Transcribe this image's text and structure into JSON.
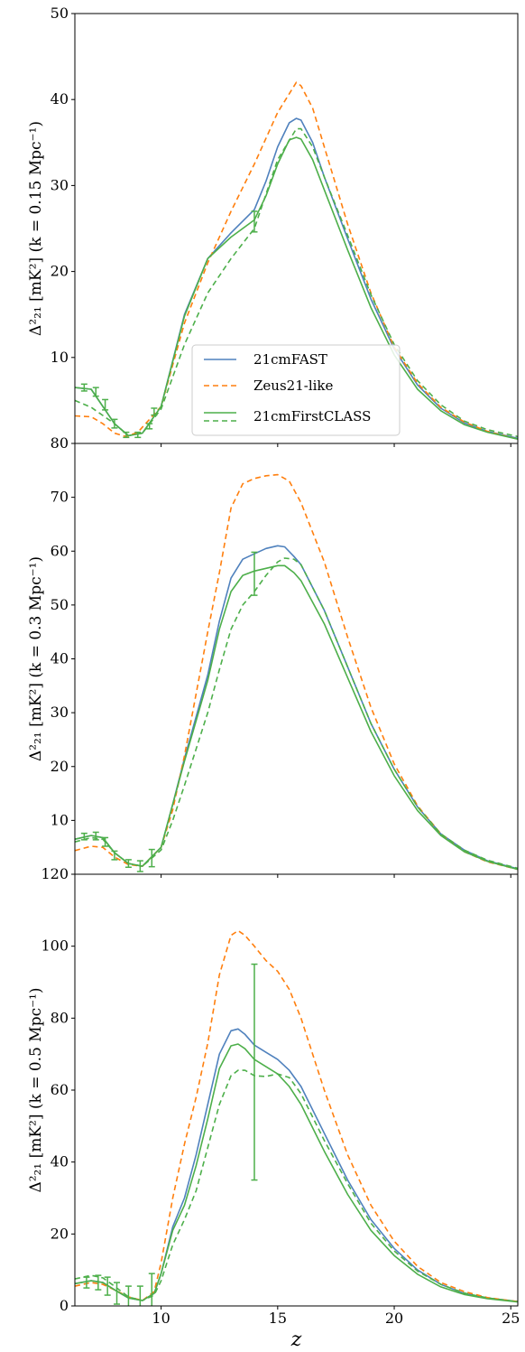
{
  "chart_data": {
    "type": "line",
    "shared_x": {
      "label": "z",
      "lim": [
        6.3,
        25.3
      ],
      "ticks": [
        10,
        15,
        20,
        25
      ],
      "tick_labels": [
        "10",
        "15",
        "20",
        "25"
      ]
    },
    "legend": {
      "placement": "lower-center (top panel)",
      "entries": [
        {
          "label": "21cmFAST",
          "color": "#4f81bd",
          "dash": "solid"
        },
        {
          "label": "Zeus21-like",
          "color": "#ff7f0e",
          "dash": "dashed"
        },
        {
          "label": "21cmFirstCLASS",
          "color": "#4daf4a",
          "dash": "solid+dashed"
        }
      ]
    },
    "panels": [
      {
        "ylabel": "Δ²₂₁ [mK²] (k = 0.15 Mpc⁻¹)",
        "ylim": [
          0,
          50
        ],
        "yticks": [
          10,
          20,
          30,
          40,
          50
        ],
        "ytick_labels": [
          "10",
          "20",
          "30",
          "40",
          "50"
        ],
        "series": [
          {
            "name": "21cmFAST",
            "color": "#4f81bd",
            "dash": "solid",
            "x": [
              6.3,
              7,
              8,
              8.6,
              9.2,
              10,
              11,
              12,
              13,
              14,
              14.5,
              15,
              15.5,
              15.8,
              16,
              16.5,
              17,
              18,
              19,
              20,
              21,
              22,
              23,
              24,
              25.3
            ],
            "y": [
              6.5,
              6.3,
              2.3,
              0.9,
              1.2,
              4.3,
              15,
              21.5,
              24.5,
              27.2,
              30.5,
              34.5,
              37.3,
              37.8,
              37.6,
              35,
              31,
              23.8,
              16.8,
              11,
              6.8,
              4.1,
              2.4,
              1.4,
              0.6
            ]
          },
          {
            "name": "Zeus21-like",
            "color": "#ff7f0e",
            "dash": "dashed",
            "x": [
              6.3,
              7,
              7.5,
              8,
              8.5,
              9,
              10,
              11,
              12,
              13,
              14,
              15,
              15.8,
              16,
              16.5,
              17,
              18,
              19,
              20,
              21,
              22,
              23,
              24,
              25.3
            ],
            "y": [
              3.2,
              3.1,
              2.3,
              1.2,
              0.8,
              1.3,
              4.3,
              14,
              21,
              27,
              32.5,
              38.5,
              42,
              41.6,
              39,
              34.5,
              25.5,
              17.5,
              11.2,
              7,
              4.2,
              2.5,
              1.4,
              0.5
            ]
          },
          {
            "name": "21cmFirstCLASS",
            "color": "#4daf4a",
            "dash": "solid",
            "x": [
              6.3,
              7,
              8,
              8.6,
              9.2,
              10,
              11,
              12,
              13,
              14,
              14.5,
              15,
              15.5,
              15.8,
              16,
              16.5,
              17,
              18,
              19,
              20,
              21,
              22,
              23,
              24,
              25.3
            ],
            "y": [
              6.5,
              6.3,
              2.3,
              0.9,
              1.2,
              4.3,
              14.8,
              21.5,
              24,
              26,
              28.8,
              32.5,
              35.3,
              35.6,
              35.4,
              33,
              29.5,
              22.5,
              15.8,
              10.3,
              6.3,
              3.8,
              2.2,
              1.3,
              0.5
            ]
          },
          {
            "name": "21cmFirstCLASS",
            "color": "#4daf4a",
            "dash": "dashed",
            "x": [
              6.3,
              7,
              8,
              8.6,
              9.2,
              10,
              11,
              12,
              13,
              14,
              15,
              15.8,
              16,
              16.5,
              17,
              18,
              19,
              20,
              21,
              22,
              23,
              24,
              25.3
            ],
            "y": [
              5.0,
              4.2,
              2.3,
              0.9,
              1.2,
              4.0,
              11.5,
              17.5,
              21.5,
              25,
              33,
              36.6,
              36.6,
              34.5,
              31,
              24.2,
              17.3,
              11.5,
              7.3,
              4.5,
              2.6,
              1.6,
              0.8
            ]
          }
        ],
        "errorbars": [
          {
            "x": 6.7,
            "y": 6.5,
            "err": 0.4
          },
          {
            "x": 7.2,
            "y": 6.0,
            "err": 0.5
          },
          {
            "x": 7.6,
            "y": 4.5,
            "err": 0.6
          },
          {
            "x": 8.0,
            "y": 2.3,
            "err": 0.5
          },
          {
            "x": 8.5,
            "y": 1.0,
            "err": 0.3
          },
          {
            "x": 9.0,
            "y": 1.0,
            "err": 0.3
          },
          {
            "x": 9.5,
            "y": 2.0,
            "err": 0.3
          },
          {
            "x": 9.7,
            "y": 3.7,
            "err": 0.4
          },
          {
            "x": 14.0,
            "y": 25.8,
            "err": 1.2
          }
        ]
      },
      {
        "ylabel": "Δ²₂₁ [mK²] (k = 0.3 Mpc⁻¹)",
        "ylim": [
          0,
          80
        ],
        "yticks": [
          10,
          20,
          30,
          40,
          50,
          60,
          70,
          80
        ],
        "ytick_labels": [
          "10",
          "20",
          "30",
          "40",
          "50",
          "60",
          "70",
          "80"
        ],
        "series": [
          {
            "name": "21cmFAST",
            "color": "#4f81bd",
            "dash": "solid",
            "x": [
              6.3,
              7,
              7.5,
              8,
              8.6,
              9.2,
              10,
              10.5,
              11,
              12,
              12.5,
              13,
              13.5,
              14,
              14.5,
              15,
              15.3,
              15.7,
              16,
              17,
              18,
              19,
              20,
              21,
              22,
              23,
              24,
              25.3
            ],
            "y": [
              6.5,
              7.2,
              6.8,
              4,
              2,
              1.5,
              5,
              13,
              21.5,
              37,
              47,
              55,
              58.5,
              59.5,
              60.5,
              61,
              60.8,
              59,
              57.5,
              49,
              38.5,
              28,
              19.5,
              12.5,
              7.5,
              4.5,
              2.5,
              1
            ]
          },
          {
            "name": "Zeus21-like",
            "color": "#ff7f0e",
            "dash": "dashed",
            "x": [
              6.3,
              7,
              7.5,
              8,
              8.6,
              9.2,
              10,
              10.5,
              11,
              12,
              12.5,
              13,
              13.5,
              14,
              14.5,
              15,
              15.5,
              16,
              17,
              18,
              19,
              20,
              21,
              22,
              23,
              24,
              25.3
            ],
            "y": [
              4.4,
              5.2,
              5.0,
              3.2,
              1.8,
              1.5,
              5,
              12,
              22,
              45,
              56,
              68,
              72.5,
              73.5,
              74,
              74.2,
              73,
              69,
              58,
              44,
              31,
              20.5,
              12.7,
              7.5,
              4.2,
              2.3,
              0.9
            ]
          },
          {
            "name": "21cmFirstCLASS",
            "color": "#4daf4a",
            "dash": "solid",
            "x": [
              6.3,
              7,
              7.5,
              8,
              8.6,
              9.2,
              10,
              10.5,
              11,
              12,
              12.5,
              13,
              13.5,
              14,
              14.5,
              15,
              15.3,
              15.7,
              16,
              17,
              18,
              19,
              20,
              21,
              22,
              23,
              24,
              25.3
            ],
            "y": [
              6.5,
              7.2,
              6.8,
              4,
              2,
              1.5,
              5,
              13,
              21,
              36,
              45.5,
              52.5,
              55.5,
              56.3,
              56.8,
              57.3,
              57.3,
              56,
              54.5,
              46.5,
              36.5,
              26.5,
              18.3,
              11.8,
              7.2,
              4.2,
              2.4,
              0.9
            ]
          },
          {
            "name": "21cmFirstCLASS",
            "color": "#4daf4a",
            "dash": "dashed",
            "x": [
              6.3,
              7,
              7.5,
              8,
              8.6,
              9.2,
              10,
              10.5,
              11,
              12,
              12.5,
              13,
              13.5,
              14,
              14.5,
              15,
              15.3,
              15.7,
              16,
              17,
              18,
              19,
              20,
              21,
              22,
              23,
              24,
              25.3
            ],
            "y": [
              6.0,
              6.8,
              6.5,
              4,
              2,
              1.5,
              4.5,
              10,
              16.5,
              30,
              38,
              45.5,
              50,
              52.5,
              55.5,
              58,
              58.7,
              58.5,
              57.5,
              49,
              38.5,
              28,
              19.5,
              12.5,
              7.5,
              4.5,
              2.6,
              1.1
            ]
          }
        ],
        "errorbars": [
          {
            "x": 6.7,
            "y": 7.0,
            "err": 0.6
          },
          {
            "x": 7.2,
            "y": 7.1,
            "err": 0.7
          },
          {
            "x": 7.6,
            "y": 6.0,
            "err": 0.8
          },
          {
            "x": 8.0,
            "y": 3.5,
            "err": 0.8
          },
          {
            "x": 8.6,
            "y": 2.0,
            "err": 0.7
          },
          {
            "x": 9.1,
            "y": 1.5,
            "err": 1.0
          },
          {
            "x": 9.6,
            "y": 3.0,
            "err": 1.6
          },
          {
            "x": 14.0,
            "y": 55.8,
            "err": 4.0
          }
        ]
      },
      {
        "ylabel": "Δ²₂₁ [mK²] (k = 0.5 Mpc⁻¹)",
        "ylim": [
          0,
          120
        ],
        "yticks": [
          0,
          20,
          40,
          60,
          80,
          100,
          120
        ],
        "ytick_labels": [
          "0",
          "20",
          "40",
          "60",
          "80",
          "100",
          "120"
        ],
        "series": [
          {
            "name": "21cmFAST",
            "color": "#4f81bd",
            "dash": "solid",
            "x": [
              6.3,
              7,
              7.5,
              8,
              8.6,
              9.2,
              9.7,
              10,
              10.5,
              11,
              11.5,
              12,
              12.5,
              13,
              13.3,
              13.6,
              14,
              14.5,
              15,
              15.5,
              16,
              17,
              18,
              19,
              20,
              21,
              22,
              23,
              24,
              25.3
            ],
            "y": [
              6.2,
              7,
              6.5,
              4.5,
              2.2,
              1.5,
              3.5,
              9,
              22,
              30,
              42,
              56,
              70,
              76.5,
              77,
              75.5,
              72.5,
              70.5,
              68.5,
              65.5,
              61,
              48,
              35,
              24,
              16,
              10,
              6,
              3.5,
              2.2,
              1.2
            ]
          },
          {
            "name": "Zeus21-like",
            "color": "#ff7f0e",
            "dash": "dashed",
            "x": [
              6.3,
              7,
              7.5,
              8,
              8.6,
              9.2,
              9.7,
              10,
              10.5,
              11,
              11.5,
              12,
              12.5,
              13,
              13.3,
              13.6,
              14,
              14.5,
              15,
              15.5,
              16,
              16.5,
              17,
              18,
              19,
              20,
              21,
              22,
              23,
              24,
              25.3
            ],
            "y": [
              5.5,
              6.5,
              6.0,
              4.5,
              2.5,
              1.5,
              4,
              12,
              30,
              45,
              58,
              73,
              92,
              103,
              104.3,
              103,
              100,
              96,
              93,
              88,
              80,
              70,
              60,
              42,
              28,
              18,
              11,
              6.5,
              4,
              2.3,
              1.2
            ]
          },
          {
            "name": "21cmFirstCLASS",
            "color": "#4daf4a",
            "dash": "solid",
            "x": [
              6.3,
              7,
              7.5,
              8,
              8.6,
              9.2,
              9.7,
              10,
              10.5,
              11,
              11.5,
              12,
              12.5,
              13,
              13.3,
              13.6,
              14,
              14.5,
              15,
              15.5,
              16,
              17,
              18,
              19,
              20,
              21,
              22,
              23,
              24,
              25.3
            ],
            "y": [
              6.2,
              7,
              6.5,
              4.5,
              2.2,
              1.5,
              3.5,
              9,
              21,
              28,
              39,
              52,
              66,
              72.3,
              72.8,
              71.5,
              68.5,
              66.5,
              64.5,
              61,
              56,
              43,
              31,
              21,
              14,
              8.8,
              5.3,
              3.2,
              2.0,
              1.1
            ]
          },
          {
            "name": "21cmFirstCLASS",
            "color": "#4daf4a",
            "dash": "dashed",
            "x": [
              6.3,
              7,
              7.5,
              8,
              8.6,
              9.2,
              9.7,
              10,
              10.5,
              11,
              11.5,
              12,
              12.5,
              13,
              13.3,
              13.6,
              14,
              14.5,
              15,
              15.5,
              16,
              17,
              18,
              19,
              20,
              21,
              22,
              23,
              24,
              25.3
            ],
            "y": [
              7.5,
              8.5,
              7.8,
              5.5,
              2.5,
              1.5,
              3,
              7,
              17,
              24,
              32,
              44,
              56,
              64,
              65.5,
              65.5,
              64,
              63.8,
              64.5,
              63.5,
              59,
              46,
              34,
              23,
              15.3,
              9.7,
              6,
              3.6,
              2.2,
              1.2
            ]
          }
        ],
        "errorbars": [
          {
            "x": 6.8,
            "y": 6.5,
            "err": 1.5
          },
          {
            "x": 7.3,
            "y": 6.5,
            "err": 2.0
          },
          {
            "x": 7.7,
            "y": 5.5,
            "err": 2.5
          },
          {
            "x": 8.1,
            "y": 3.5,
            "err": 3.0
          },
          {
            "x": 8.6,
            "y": 2.0,
            "err": 3.5
          },
          {
            "x": 9.1,
            "y": 1.5,
            "err": 4.0
          },
          {
            "x": 9.6,
            "y": 3.5,
            "err": 5.5
          },
          {
            "x": 14.0,
            "y": 65.0,
            "err": 30.0
          }
        ]
      }
    ]
  }
}
